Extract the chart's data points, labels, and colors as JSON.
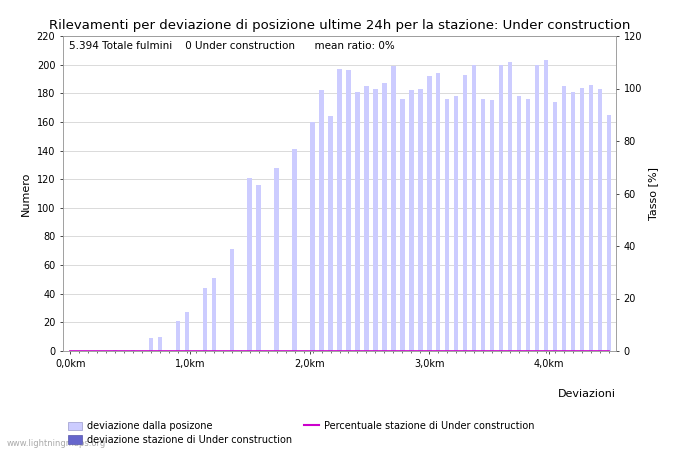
{
  "title": "Rilevamenti per deviazione di posizione ultime 24h per la stazione: Under construction",
  "subtitle": "5.394 Totale fulmini    0 Under construction      mean ratio: 0%",
  "xlabel": "Deviazioni",
  "ylabel_left": "Numero",
  "ylabel_right": "Tasso [%]",
  "ylim_left": [
    0,
    220
  ],
  "ylim_right": [
    0,
    120
  ],
  "yticks_left": [
    0,
    20,
    40,
    60,
    80,
    100,
    120,
    140,
    160,
    180,
    200,
    220
  ],
  "yticks_right": [
    0,
    20,
    40,
    60,
    80,
    100,
    120
  ],
  "bar_color_light": "#ccccff",
  "bar_color_dark": "#6666cc",
  "line_color": "#cc00cc",
  "background_color": "#ffffff",
  "grid_color": "#cccccc",
  "watermark": "www.lightningmaps.org",
  "xtick_labels": [
    "0,0km",
    "1,0km",
    "2,0km",
    "3,0km",
    "4,0km"
  ],
  "legend_labels": [
    "deviazione dalla posizone",
    "deviazione stazione di Under construction",
    "Percentuale stazione di Under construction"
  ],
  "bar_values": [
    0,
    0,
    0,
    0,
    0,
    1,
    0,
    1,
    0,
    9,
    10,
    0,
    21,
    27,
    0,
    44,
    51,
    0,
    71,
    0,
    121,
    116,
    0,
    128,
    0,
    141,
    0,
    160,
    182,
    164,
    197,
    196,
    181,
    185,
    183,
    187,
    199,
    176,
    182,
    183,
    192,
    194,
    176,
    178,
    193,
    200,
    176,
    175,
    200,
    202,
    178,
    176,
    200,
    203,
    174,
    185,
    181,
    184,
    186,
    183,
    165
  ],
  "bar_station_values": [
    0,
    0,
    0,
    0,
    0,
    0,
    0,
    0,
    0,
    0,
    0,
    0,
    0,
    0,
    0,
    0,
    0,
    0,
    0,
    0,
    0,
    0,
    0,
    0,
    0,
    0,
    0,
    0,
    0,
    0,
    0,
    0,
    0,
    0,
    0,
    0,
    0,
    0,
    0,
    0,
    0,
    0,
    0,
    0,
    0,
    0,
    0,
    0,
    0,
    0,
    0,
    0,
    0,
    0,
    0,
    0,
    0,
    0,
    0,
    0,
    0
  ],
  "num_bars": 61,
  "total_km": 4.5
}
